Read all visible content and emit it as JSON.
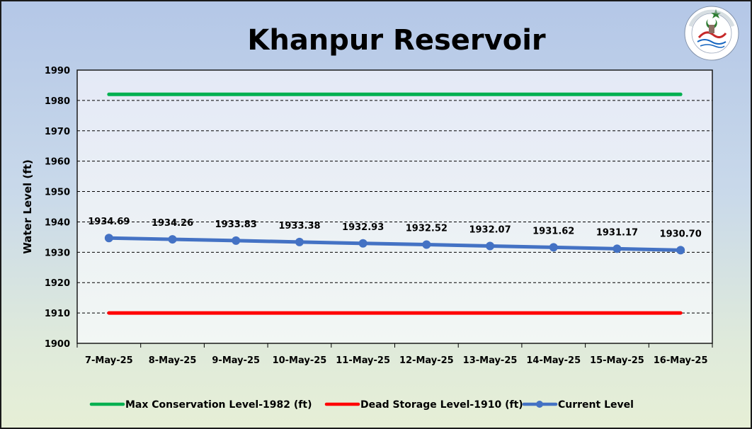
{
  "chart_data": {
    "type": "line",
    "title": "Khanpur Reservoir",
    "ylabel": "Water Level (ft)",
    "xlabel": "",
    "ylim": [
      1900,
      1990
    ],
    "ytick_step": 10,
    "grid": true,
    "legend_placement": "bottom",
    "categories": [
      "7-May-25",
      "8-May-25",
      "9-May-25",
      "10-May-25",
      "11-May-25",
      "12-May-25",
      "13-May-25",
      "14-May-25",
      "15-May-25",
      "16-May-25"
    ],
    "series": [
      {
        "name": "Max Conservation Level-1982 (ft)",
        "color": "#00b050",
        "markers": false,
        "data_labels": false,
        "values": [
          1982,
          1982,
          1982,
          1982,
          1982,
          1982,
          1982,
          1982,
          1982,
          1982
        ]
      },
      {
        "name": "Dead Storage Level-1910 (ft)",
        "color": "#ff0000",
        "markers": false,
        "data_labels": false,
        "values": [
          1910,
          1910,
          1910,
          1910,
          1910,
          1910,
          1910,
          1910,
          1910,
          1910
        ]
      },
      {
        "name": "Current Level",
        "color": "#4472c4",
        "markers": true,
        "data_labels": true,
        "values": [
          1934.69,
          1934.26,
          1933.83,
          1933.38,
          1932.93,
          1932.52,
          1932.07,
          1931.62,
          1931.17,
          1930.7
        ],
        "labels": [
          "1934.69",
          "1934.26",
          "1933.83",
          "1933.38",
          "1932.93",
          "1932.52",
          "1932.07",
          "1931.62",
          "1931.17",
          "1930.70"
        ]
      }
    ]
  },
  "logo": {
    "icon": "pakistan-meteorological-department-logo",
    "text": "PAKISTAN METEOROLOGICAL DEPARTMENT"
  }
}
